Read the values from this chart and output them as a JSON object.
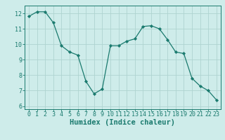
{
  "x": [
    0,
    1,
    2,
    3,
    4,
    5,
    6,
    7,
    8,
    9,
    10,
    11,
    12,
    13,
    14,
    15,
    16,
    17,
    18,
    19,
    20,
    21,
    22,
    23
  ],
  "y": [
    11.8,
    12.1,
    12.1,
    11.4,
    9.9,
    9.5,
    9.3,
    7.6,
    6.8,
    7.1,
    9.9,
    9.9,
    10.2,
    10.35,
    11.15,
    11.2,
    11.0,
    10.3,
    9.5,
    9.4,
    7.8,
    7.3,
    7.0,
    6.4
  ],
  "line_color": "#1a7a6e",
  "marker": "D",
  "marker_size": 2.2,
  "bg_color": "#ceecea",
  "grid_color": "#aed4d0",
  "xlabel": "Humidex (Indice chaleur)",
  "ylim": [
    5.8,
    12.5
  ],
  "xlim": [
    -0.5,
    23.5
  ],
  "yticks": [
    6,
    7,
    8,
    9,
    10,
    11,
    12
  ],
  "xticks": [
    0,
    1,
    2,
    3,
    4,
    5,
    6,
    7,
    8,
    9,
    10,
    11,
    12,
    13,
    14,
    15,
    16,
    17,
    18,
    19,
    20,
    21,
    22,
    23
  ],
  "tick_color": "#1a7a6e",
  "label_color": "#1a7a6e",
  "font_size_xlabel": 7.5,
  "font_size_ticks": 6.0
}
